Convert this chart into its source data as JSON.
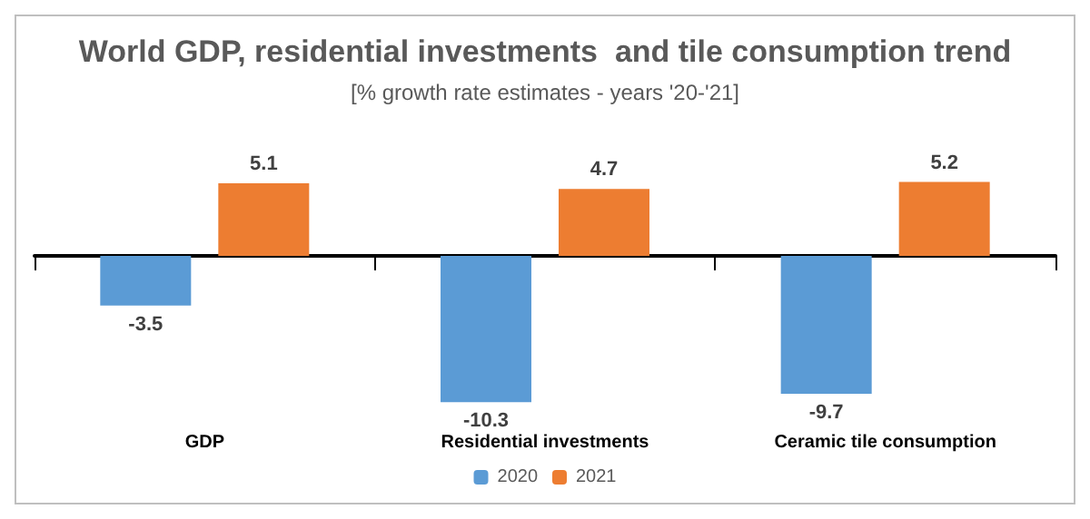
{
  "chart_data": {
    "type": "bar",
    "title": "World GDP, residential investments  and tile consumption trend",
    "subtitle": "[% growth rate estimates - years '20-'21]",
    "categories": [
      "GDP",
      "Residential investments",
      "Ceramic tile consumption"
    ],
    "series": [
      {
        "name": "2020",
        "color": "#5b9bd5",
        "values": [
          -3.5,
          -10.3,
          -9.7
        ]
      },
      {
        "name": "2021",
        "color": "#ed7d31",
        "values": [
          5.1,
          4.7,
          5.2
        ]
      }
    ],
    "data_labels": true,
    "legend": "bottom",
    "grid": false
  }
}
